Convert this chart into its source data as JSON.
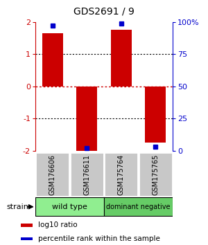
{
  "title": "GDS2691 / 9",
  "samples": [
    "GSM176606",
    "GSM176611",
    "GSM175764",
    "GSM175765"
  ],
  "log10_ratios": [
    1.65,
    -2.0,
    1.75,
    -1.75
  ],
  "percentile_ranks": [
    97,
    2,
    99,
    3
  ],
  "groups": [
    {
      "name": "wild type",
      "samples": [
        0,
        1
      ],
      "color": "#90EE90"
    },
    {
      "name": "dominant negative",
      "samples": [
        2,
        3
      ],
      "color": "#66CC66"
    }
  ],
  "ylim": [
    -2,
    2
  ],
  "yticks_left": [
    -2,
    -1,
    0,
    1,
    2
  ],
  "yticks_right_labels": [
    "0",
    "25",
    "50",
    "75",
    "100%"
  ],
  "yticks_right_pos": [
    -2,
    -1,
    0,
    1,
    2
  ],
  "bar_color": "#CC0000",
  "dot_color": "#0000CC",
  "zero_line_color": "#CC0000",
  "grid_color": "#000000",
  "sample_box_color": "#C8C8C8",
  "background_color": "#FFFFFF",
  "strain_label": "strain",
  "legend_items": [
    {
      "color": "#CC0000",
      "label": "log10 ratio"
    },
    {
      "color": "#0000CC",
      "label": "percentile rank within the sample"
    }
  ]
}
